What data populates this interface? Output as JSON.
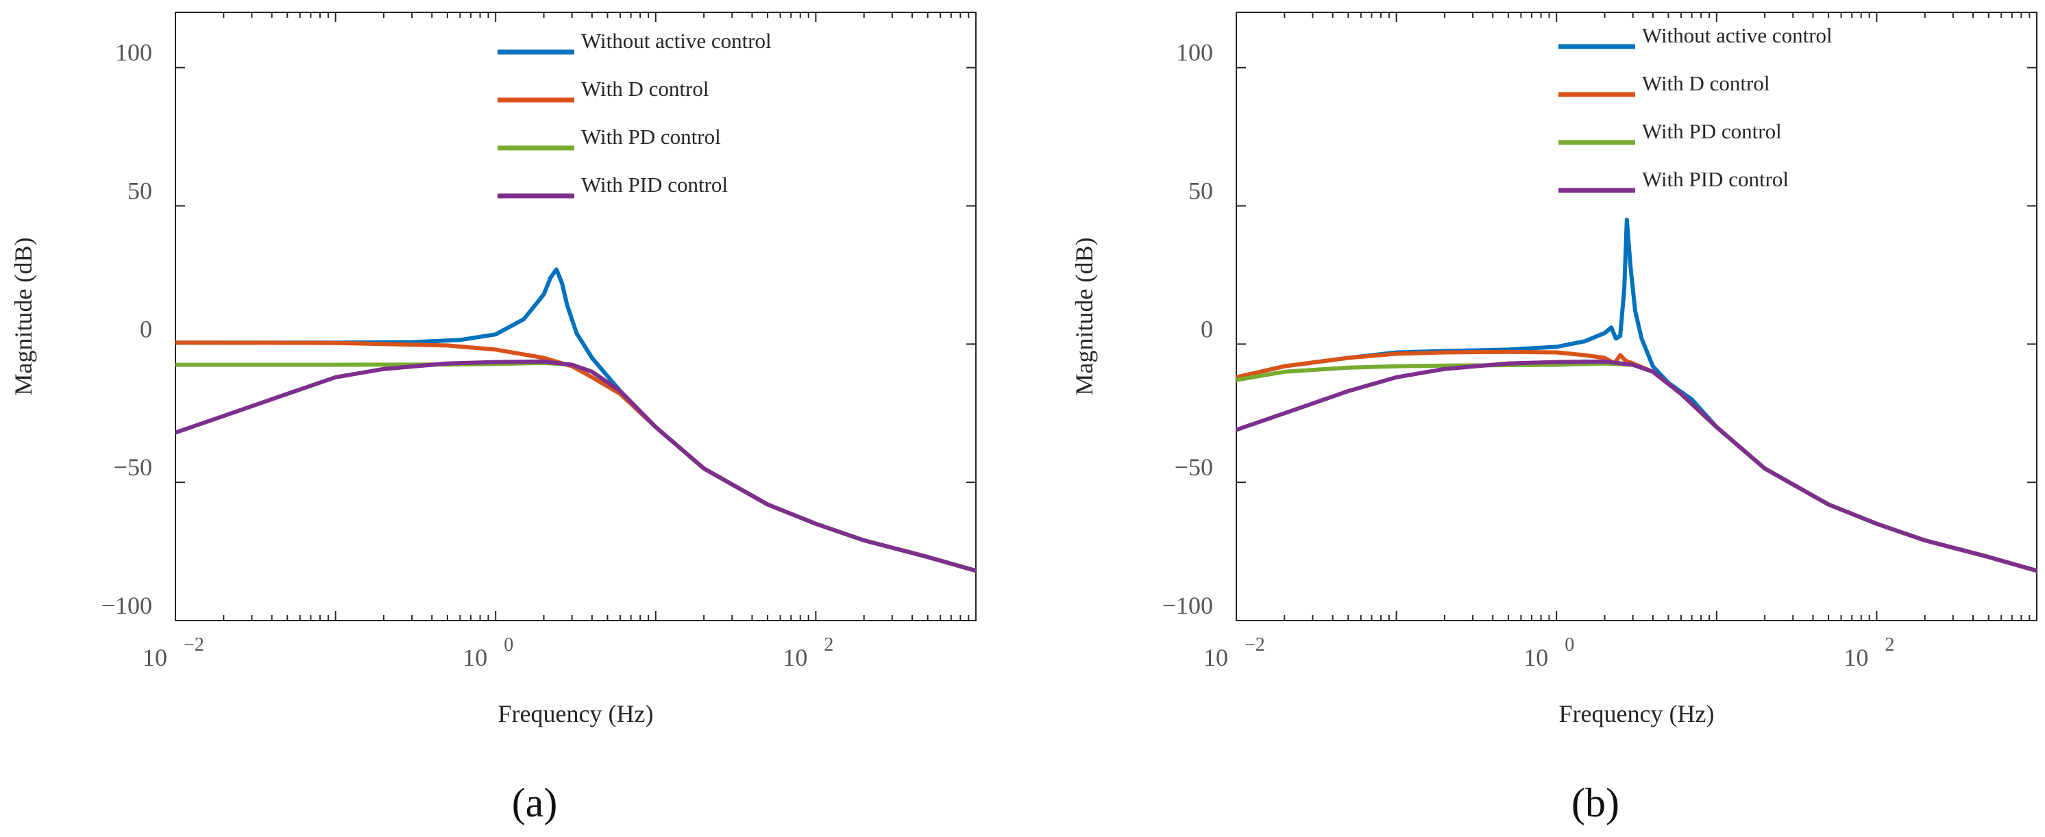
{
  "chart_data": [
    {
      "type": "line",
      "panel_label": "(a)",
      "title": "",
      "xlabel": "Frequency  (Hz)",
      "ylabel": "Magnitude (dB)",
      "xscale": "log",
      "xlim": [
        0.01,
        1000
      ],
      "ylim": [
        -100,
        120
      ],
      "yticks": [
        -100,
        -50,
        0,
        50,
        100
      ],
      "ytick_labels": [
        "−100",
        "−50",
        "0",
        "50",
        "100"
      ],
      "xticks": [
        {
          "base": "10",
          "exp": "−2",
          "value": 0.01
        },
        {
          "base": "10",
          "exp": "0",
          "value": 1
        },
        {
          "base": "10",
          "exp": "2",
          "value": 100
        }
      ],
      "legend_position": "top-center",
      "series": [
        {
          "name": "Without active control",
          "color": "#0072BD",
          "x": [
            0.01,
            0.1,
            0.3,
            0.6,
            1.0,
            1.5,
            2.0,
            2.2,
            2.4,
            2.6,
            2.8,
            3.2,
            4.0,
            6.0,
            10,
            20,
            50,
            100,
            200,
            500,
            1000
          ],
          "y": [
            0.5,
            0.5,
            0.7,
            1.5,
            3.5,
            9,
            18,
            24,
            27,
            22,
            14,
            4,
            -5,
            -17,
            -30,
            -45,
            -58,
            -65,
            -71,
            -77,
            -82
          ]
        },
        {
          "name": "With D control",
          "color": "#D95319",
          "x": [
            0.01,
            0.1,
            0.5,
            1.0,
            2.0,
            3.0,
            4.0,
            6.0,
            10,
            20,
            50,
            100,
            200,
            500,
            1000
          ],
          "y": [
            0.5,
            0.4,
            -0.5,
            -2,
            -5,
            -8,
            -12,
            -18,
            -30,
            -45,
            -58,
            -65,
            -71,
            -77,
            -82
          ]
        },
        {
          "name": "With PD control",
          "color": "#77AC30",
          "x": [
            0.01,
            0.1,
            0.5,
            1.0,
            2.0,
            3.0,
            4.0,
            6.0,
            10,
            20,
            50,
            100,
            200,
            500,
            1000
          ],
          "y": [
            -7.5,
            -7.5,
            -7.4,
            -7.2,
            -6.8,
            -7.5,
            -10,
            -17,
            -30,
            -45,
            -58,
            -65,
            -71,
            -77,
            -82
          ]
        },
        {
          "name": "With PID control",
          "color": "#7E2F8E",
          "x": [
            0.01,
            0.02,
            0.05,
            0.1,
            0.2,
            0.5,
            1.0,
            2.0,
            3.0,
            4.0,
            6.0,
            10,
            20,
            50,
            100,
            200,
            500,
            1000
          ],
          "y": [
            -32,
            -26,
            -18,
            -12,
            -9,
            -7,
            -6.5,
            -6.3,
            -7.5,
            -10,
            -17,
            -30,
            -45,
            -58,
            -65,
            -71,
            -77,
            -82
          ]
        }
      ]
    },
    {
      "type": "line",
      "panel_label": "(b)",
      "title": "",
      "xlabel": "Frequency  (Hz)",
      "ylabel": "Magnitude (dB)",
      "xscale": "log",
      "xlim": [
        0.01,
        1000
      ],
      "ylim": [
        -100,
        120
      ],
      "yticks": [
        -100,
        -50,
        0,
        50,
        100
      ],
      "ytick_labels": [
        "−100",
        "−50",
        "0",
        "50",
        "100"
      ],
      "xticks": [
        {
          "base": "10",
          "exp": "−2",
          "value": 0.01
        },
        {
          "base": "10",
          "exp": "0",
          "value": 1
        },
        {
          "base": "10",
          "exp": "2",
          "value": 100
        }
      ],
      "legend_position": "top-center",
      "series": [
        {
          "name": "Without active control",
          "color": "#0072BD",
          "x": [
            0.01,
            0.02,
            0.05,
            0.1,
            0.2,
            0.5,
            1.0,
            1.5,
            2.0,
            2.2,
            2.35,
            2.5,
            2.65,
            2.75,
            2.9,
            3.1,
            3.4,
            4.0,
            5.0,
            7.0,
            10,
            20,
            50,
            100,
            200,
            500,
            1000
          ],
          "y": [
            -12,
            -8,
            -5,
            -3,
            -2.5,
            -2,
            -1,
            1,
            4,
            6,
            2,
            3,
            20,
            45,
            28,
            12,
            2,
            -8,
            -14,
            -20,
            -30,
            -45,
            -58,
            -65,
            -71,
            -77,
            -82
          ]
        },
        {
          "name": "With D control",
          "color": "#D95319",
          "x": [
            0.01,
            0.02,
            0.05,
            0.1,
            0.2,
            0.5,
            1.0,
            1.5,
            2.0,
            2.3,
            2.5,
            2.7,
            3.0,
            4.0,
            6.0,
            10,
            20,
            50,
            100,
            200,
            500,
            1000
          ],
          "y": [
            -12,
            -8,
            -5,
            -3.5,
            -3,
            -2.8,
            -3,
            -4,
            -5,
            -7,
            -4,
            -6,
            -7,
            -10,
            -18,
            -30,
            -45,
            -58,
            -65,
            -71,
            -77,
            -82
          ]
        },
        {
          "name": "With PD control",
          "color": "#77AC30",
          "x": [
            0.01,
            0.02,
            0.05,
            0.1,
            0.2,
            0.5,
            1.0,
            2.0,
            3.0,
            4.0,
            6.0,
            10,
            20,
            50,
            100,
            200,
            500,
            1000
          ],
          "y": [
            -13,
            -10,
            -8.5,
            -8,
            -7.8,
            -7.6,
            -7.5,
            -7,
            -7.5,
            -10,
            -18,
            -30,
            -45,
            -58,
            -65,
            -71,
            -77,
            -82
          ]
        },
        {
          "name": "With PID control",
          "color": "#7E2F8E",
          "x": [
            0.01,
            0.02,
            0.05,
            0.1,
            0.2,
            0.5,
            1.0,
            2.0,
            3.0,
            4.0,
            6.0,
            10,
            20,
            50,
            100,
            200,
            500,
            1000
          ],
          "y": [
            -31,
            -25,
            -17,
            -12,
            -9,
            -7,
            -6.5,
            -6.3,
            -7.5,
            -10,
            -18,
            -30,
            -45,
            -58,
            -65,
            -71,
            -77,
            -82
          ]
        }
      ]
    }
  ]
}
